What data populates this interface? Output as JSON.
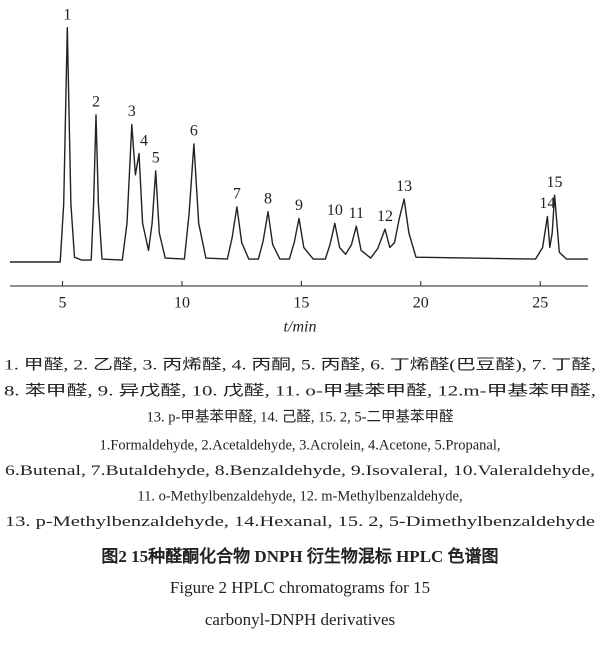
{
  "chart_data": {
    "type": "line",
    "x": [
      2.8,
      4.9,
      5.05,
      5.2,
      5.35,
      5.5,
      5.8,
      6.2,
      6.3,
      6.4,
      6.5,
      6.65,
      7.5,
      7.7,
      7.9,
      8.05,
      8.2,
      8.35,
      8.6,
      8.75,
      8.9,
      9.05,
      9.3,
      10.1,
      10.3,
      10.5,
      10.7,
      11.0,
      11.9,
      12.1,
      12.3,
      12.5,
      12.8,
      13.2,
      13.4,
      13.6,
      13.8,
      14.1,
      14.5,
      14.7,
      14.9,
      15.1,
      15.5,
      16.0,
      16.2,
      16.4,
      16.6,
      16.85,
      17.1,
      17.3,
      17.5,
      17.9,
      18.2,
      18.5,
      18.7,
      18.9,
      19.1,
      19.3,
      19.5,
      19.8,
      24.8,
      25.1,
      25.3,
      25.4,
      25.5,
      25.6,
      25.8,
      26.1,
      27
    ],
    "values": [
      0,
      0,
      60,
      242,
      60,
      5,
      2,
      2,
      60,
      152,
      60,
      3,
      2,
      40,
      142,
      90,
      112,
      40,
      12,
      40,
      94,
      30,
      4,
      3,
      50,
      122,
      40,
      4,
      3,
      25,
      57,
      20,
      3,
      3,
      22,
      52,
      18,
      3,
      3,
      20,
      45,
      15,
      3,
      3,
      18,
      40,
      15,
      8,
      18,
      37,
      12,
      4,
      14,
      34,
      15,
      20,
      45,
      65,
      30,
      5,
      3,
      15,
      47,
      15,
      30,
      69,
      10,
      3,
      3
    ],
    "color": "#222222",
    "xlim": [
      2.8,
      27
    ],
    "xticks": [
      5,
      10,
      15,
      20,
      25
    ],
    "ylim": [
      0,
      250
    ],
    "xlabel": "t/min",
    "peak_labels": [
      {
        "text": "1",
        "x": 5.2
      },
      {
        "text": "2",
        "x": 6.4
      },
      {
        "text": "3",
        "x": 7.9
      },
      {
        "text": "4",
        "x": 8.2
      },
      {
        "text": "5",
        "x": 8.9
      },
      {
        "text": "6",
        "x": 10.5
      },
      {
        "text": "7",
        "x": 12.3
      },
      {
        "text": "8",
        "x": 13.6
      },
      {
        "text": "9",
        "x": 14.9
      },
      {
        "text": "10",
        "x": 16.4
      },
      {
        "text": "11",
        "x": 17.3
      },
      {
        "text": "12",
        "x": 18.5
      },
      {
        "text": "13",
        "x": 19.3
      },
      {
        "text": "14",
        "x": 25.3
      },
      {
        "text": "15",
        "x": 25.6
      }
    ]
  },
  "caption": {
    "cn_peaks": [
      "1. 甲醛, 2. 乙醛, 3. 丙烯醛, 4. 丙酮, 5. 丙醛, 6. 丁烯醛(巴豆醛), 7. 丁醛,",
      "8. 苯甲醛, 9. 异戊醛, 10. 戊醛, 11. o-甲基苯甲醛, 12.m-甲基苯甲醛,",
      "13. p-甲基苯甲醛, 14. 己醛, 15. 2, 5-二甲基苯甲醛"
    ],
    "en_peaks": [
      "1.Formaldehyde, 2.Acetaldehyde, 3.Acrolein, 4.Acetone, 5.Propanal,",
      "6.Butenal, 7.Butaldehyde, 8.Benzaldehyde, 9.Isovaleral, 10.Valeraldehyde,",
      "11. o-Methylbenzaldehyde, 12. m-Methylbenzaldehyde,",
      "13. p-Methylbenzaldehyde, 14.Hexanal, 15. 2, 5-Dimethylbenzaldehyde"
    ],
    "figure_cn": "图2  15种醛酮化合物 DNPH 衍生物混标 HPLC 色谱图",
    "figure_en": [
      "Figure 2  HPLC chromatograms for 15",
      "carbonyl-DNPH derivatives"
    ]
  }
}
